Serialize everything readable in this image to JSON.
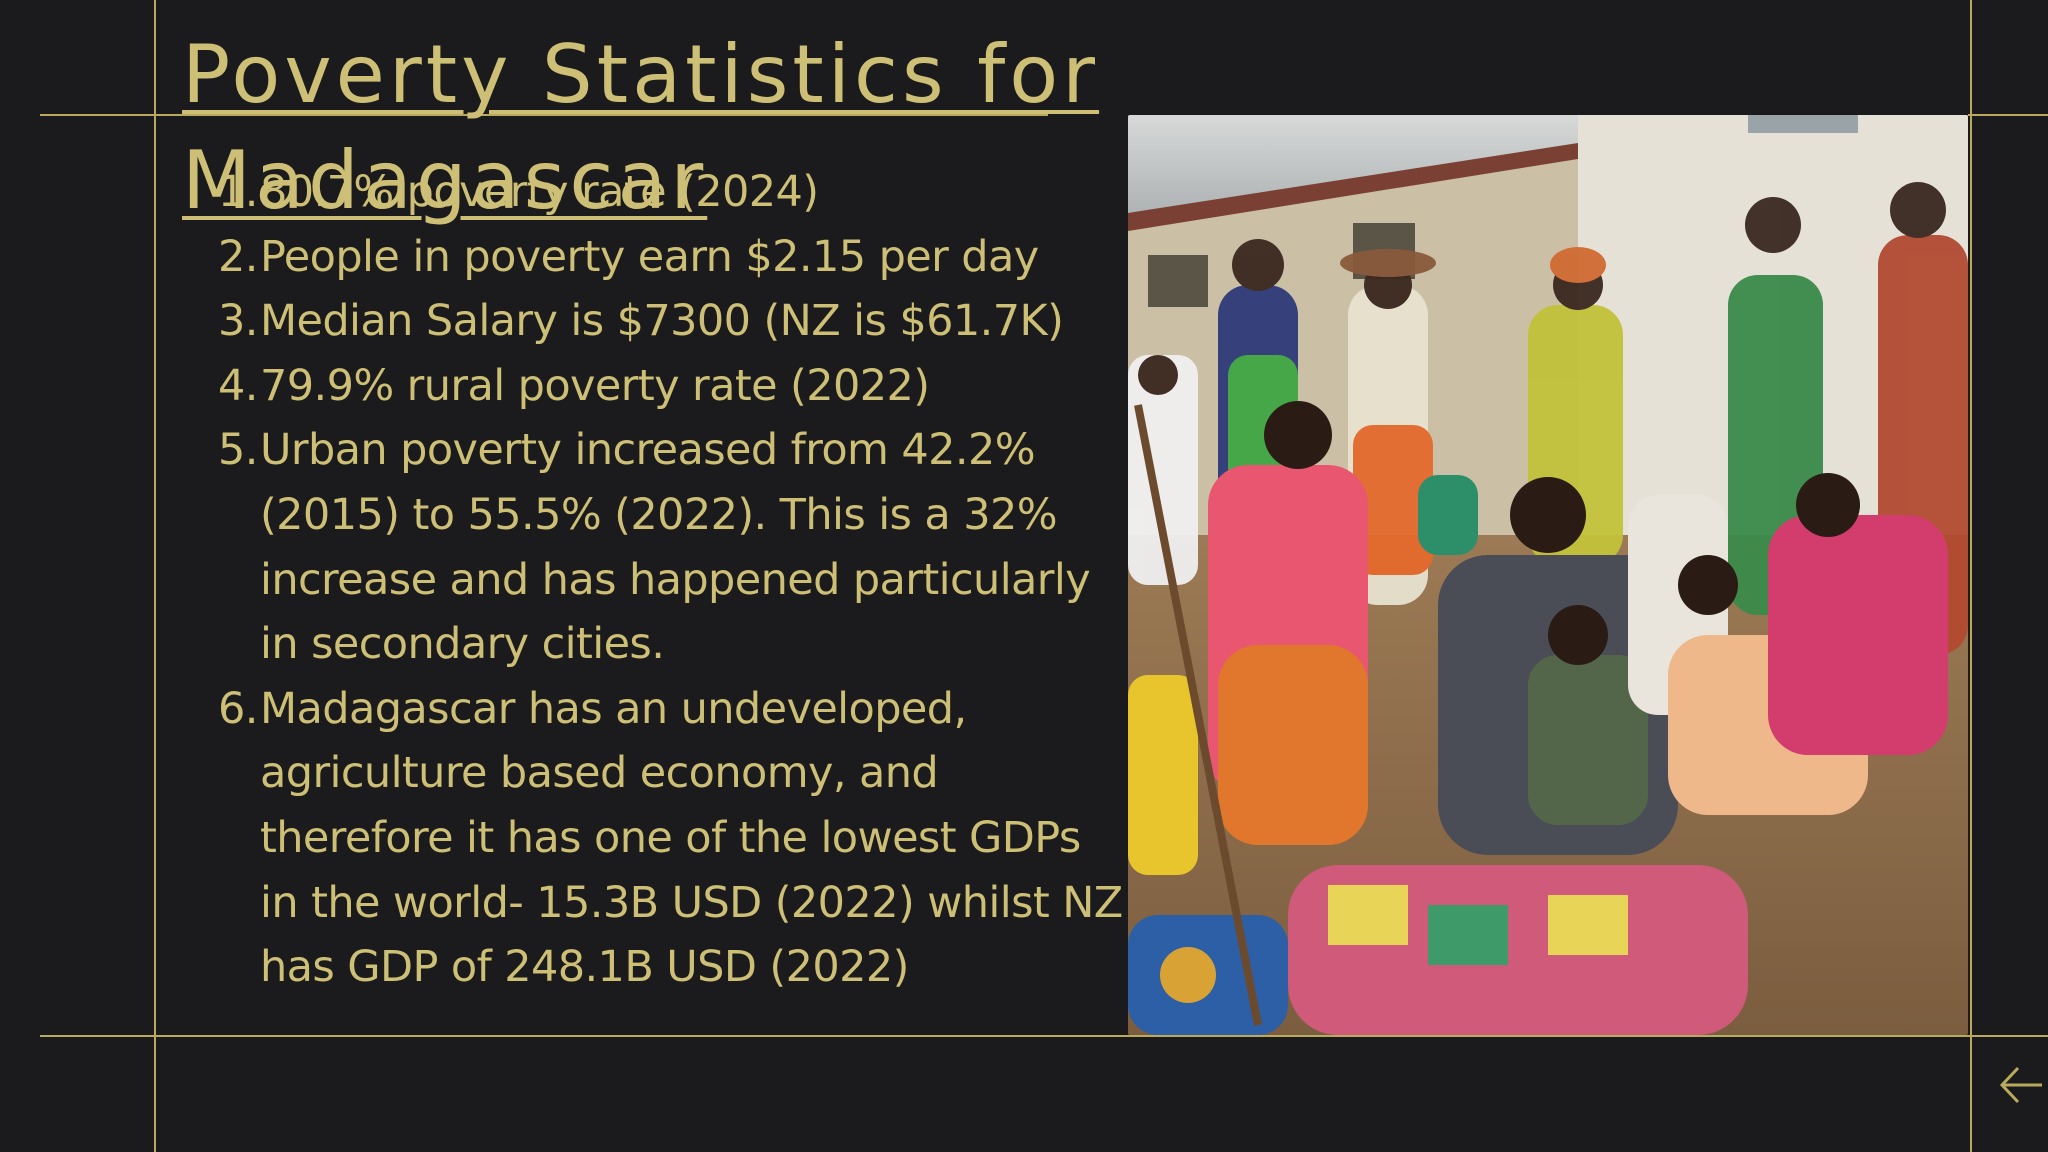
{
  "slide": {
    "title": "Poverty Statistics for Madagascar",
    "items": [
      {
        "num": "1.",
        "text": "80.7% poverty rate (2024)"
      },
      {
        "num": "2.",
        "text": "People in poverty earn $2.15 per day"
      },
      {
        "num": "3.",
        "text": "Median Salary is $7300 (NZ is $61.7K)"
      },
      {
        "num": "4.",
        "text": "79.9% rural poverty rate (2022)"
      },
      {
        "num": "5.",
        "text": "Urban poverty increased from 42.2% (2015) to 55.5% (2022). This is a 32% increase and has happened particularly in secondary cities."
      },
      {
        "num": "6.",
        "text": " Madagascar has an undeveloped, agriculture based economy, and therefore it has one of the lowest GDPs in the world-  15.3B USD (2022) whilst NZ has GDP of 248.1B USD (2022)"
      }
    ]
  },
  "photo": {
    "icon": "group-photo-icon"
  },
  "navigation": {
    "back_icon": "arrow-left-icon"
  },
  "colors": {
    "background": "#1b1b1d",
    "accent": "#cdbf75",
    "rule": "#b9aa5d"
  }
}
